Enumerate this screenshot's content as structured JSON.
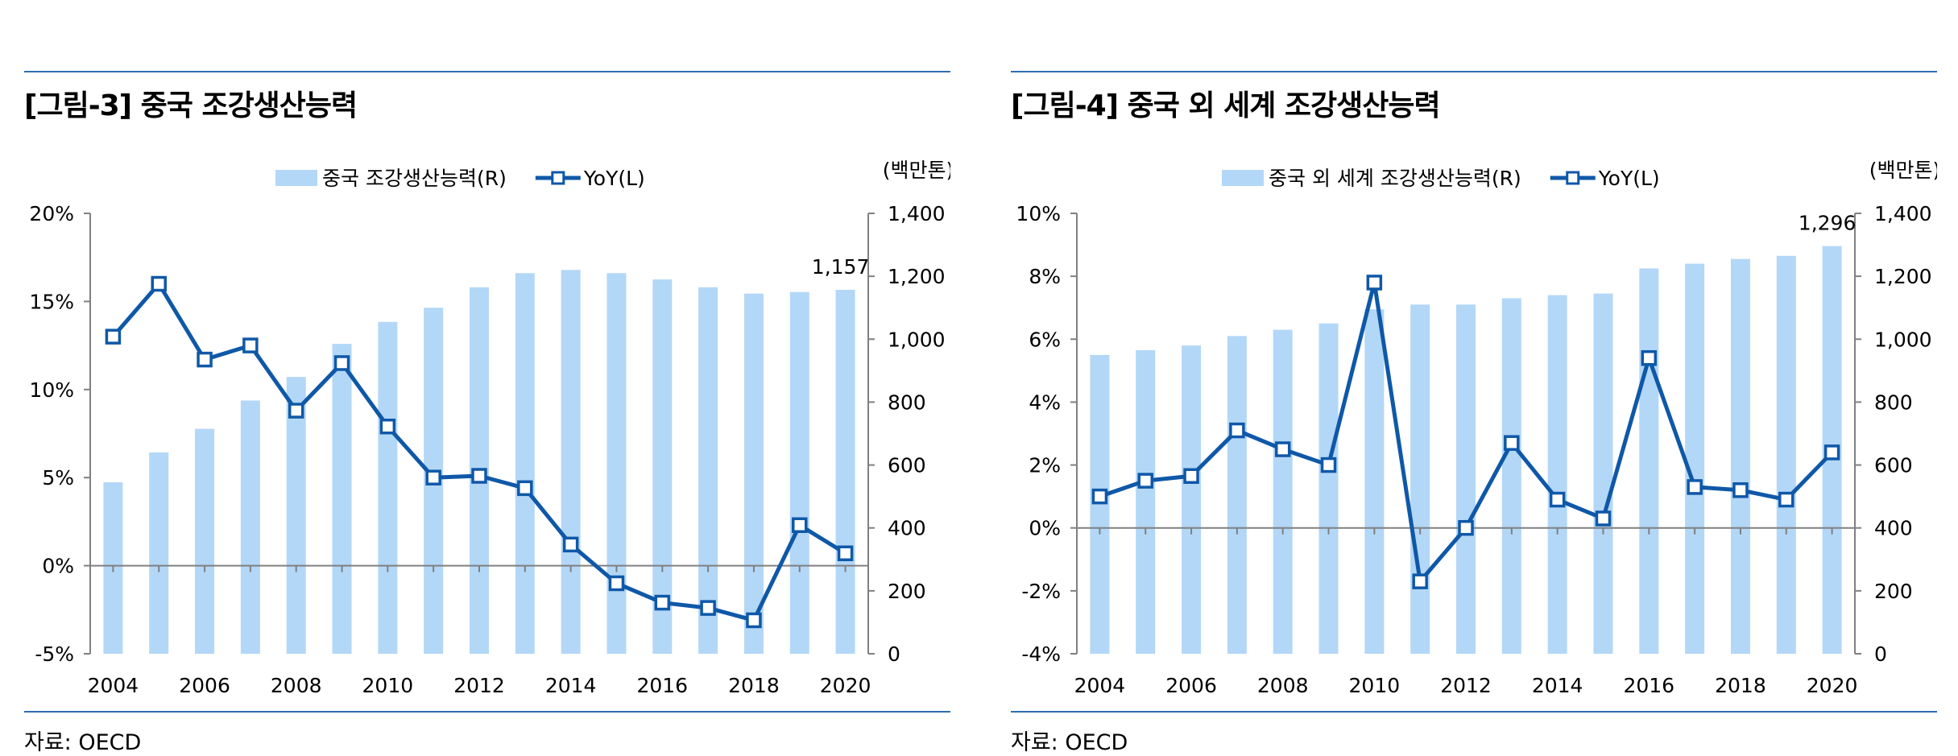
{
  "colors": {
    "bar": "#b3d7f7",
    "line": "#0f58a8",
    "rule": "#2e6db4",
    "axis": "#808080"
  },
  "source_label": "자료: OECD",
  "chart_data": [
    {
      "id": "fig3",
      "type": "bar+line",
      "title": "[그림-3] 중국 조강생산능력",
      "unit_label": "(백만톤)",
      "x": [
        2004,
        2005,
        2006,
        2007,
        2008,
        2009,
        2010,
        2011,
        2012,
        2013,
        2014,
        2015,
        2016,
        2017,
        2018,
        2019,
        2020
      ],
      "x_tick_labels": [
        "2004",
        "2006",
        "2008",
        "2010",
        "2012",
        "2014",
        "2016",
        "2018",
        "2020"
      ],
      "bar_series": {
        "name": "중국 조강생산능력(R)",
        "axis": "right",
        "values": [
          545,
          640,
          715,
          805,
          880,
          985,
          1055,
          1100,
          1165,
          1210,
          1220,
          1210,
          1190,
          1165,
          1145,
          1150,
          1157
        ]
      },
      "line_series": {
        "name": "YoY(L)",
        "axis": "left",
        "marker": "hollow-square",
        "values": [
          13.0,
          16.0,
          11.7,
          12.5,
          8.8,
          11.5,
          7.9,
          5.0,
          5.1,
          4.4,
          1.2,
          -1.0,
          -2.1,
          -2.4,
          -3.1,
          2.3,
          0.7
        ]
      },
      "left_axis": {
        "min": -5,
        "max": 20,
        "ticks": [
          -5,
          0,
          5,
          10,
          15,
          20
        ],
        "tick_labels": [
          "-5%",
          "0%",
          "5%",
          "10%",
          "15%",
          "20%"
        ]
      },
      "right_axis": {
        "min": 0,
        "max": 1400,
        "ticks": [
          0,
          200,
          400,
          600,
          800,
          1000,
          1200,
          1400
        ],
        "tick_labels": [
          "0",
          "200",
          "400",
          "600",
          "800",
          "1,000",
          "1,200",
          "1,400"
        ]
      },
      "annotation": {
        "text": "1,157",
        "x": 2020,
        "value": 1157
      },
      "legend_position": "top-center",
      "grid": false
    },
    {
      "id": "fig4",
      "type": "bar+line",
      "title": "[그림-4] 중국 외 세계 조강생산능력",
      "unit_label": "(백만톤)",
      "x": [
        2004,
        2005,
        2006,
        2007,
        2008,
        2009,
        2010,
        2011,
        2012,
        2013,
        2014,
        2015,
        2016,
        2017,
        2018,
        2019,
        2020
      ],
      "x_tick_labels": [
        "2004",
        "2006",
        "2008",
        "2010",
        "2012",
        "2014",
        "2016",
        "2018",
        "2020"
      ],
      "bar_series": {
        "name": "중국 외 세계 조강생산능력(R)",
        "axis": "right",
        "values": [
          950,
          965,
          980,
          1010,
          1030,
          1050,
          1095,
          1110,
          1110,
          1130,
          1140,
          1145,
          1225,
          1240,
          1255,
          1265,
          1296
        ]
      },
      "line_series": {
        "name": "YoY(L)",
        "axis": "left",
        "marker": "hollow-square",
        "values": [
          1.0,
          1.5,
          1.65,
          3.1,
          2.5,
          2.0,
          7.8,
          -1.7,
          0.0,
          2.7,
          0.9,
          0.3,
          5.4,
          1.3,
          1.2,
          0.9,
          2.4
        ]
      },
      "left_axis": {
        "min": -4,
        "max": 10,
        "ticks": [
          -4,
          -2,
          0,
          2,
          4,
          6,
          8,
          10
        ],
        "tick_labels": [
          "-4%",
          "-2%",
          "0%",
          "2%",
          "4%",
          "6%",
          "8%",
          "10%"
        ]
      },
      "right_axis": {
        "min": 0,
        "max": 1400,
        "ticks": [
          0,
          200,
          400,
          600,
          800,
          1000,
          1200,
          1400
        ],
        "tick_labels": [
          "0",
          "200",
          "400",
          "600",
          "800",
          "1,000",
          "1,200",
          "1,400"
        ]
      },
      "annotation": {
        "text": "1,296",
        "x": 2020,
        "value": 1296
      },
      "legend_position": "top-center",
      "grid": false
    }
  ]
}
